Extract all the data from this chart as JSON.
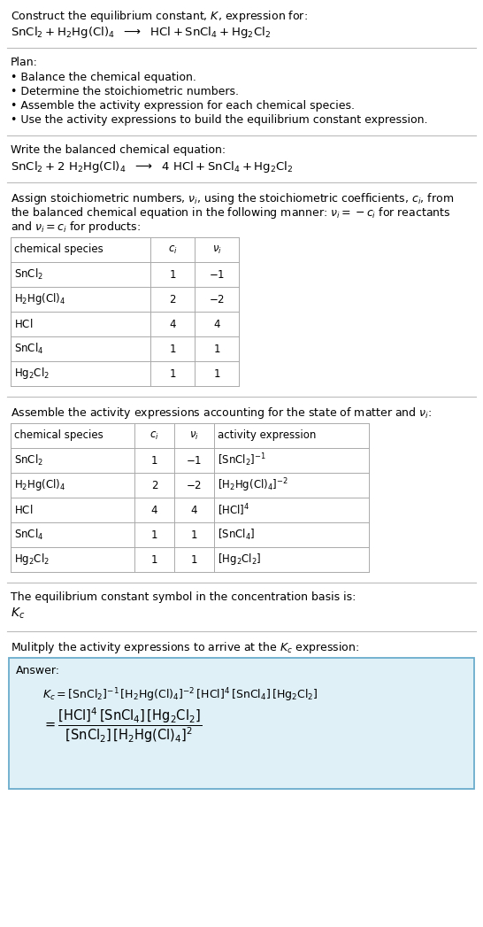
{
  "bg_color": "#ffffff",
  "text_color": "#000000",
  "divider_color": "#bbbbbb",
  "table_border_color": "#aaaaaa",
  "answer_box_color": "#dff0f7",
  "answer_box_border": "#6aabcc",
  "font_size": 9.0,
  "title_line1": "Construct the equilibrium constant, $K$, expression for:",
  "plan_header": "Plan:",
  "plan_items": [
    "• Balance the chemical equation.",
    "• Determine the stoichiometric numbers.",
    "• Assemble the activity expression for each chemical species.",
    "• Use the activity expressions to build the equilibrium constant expression."
  ],
  "balanced_header": "Write the balanced chemical equation:",
  "stoich_header_parts": [
    "Assign stoichiometric numbers, ",
    "nu_i",
    ", using the stoichiometric coefficients, ",
    "c_i",
    ", from"
  ],
  "table1_cols": [
    "chemical species",
    "c_i",
    "nu_i"
  ],
  "table1_rows": [
    [
      "SnCl2",
      "1",
      "-1"
    ],
    [
      "H2HgCl4",
      "2",
      "-2"
    ],
    [
      "HCl",
      "4",
      "4"
    ],
    [
      "SnCl4",
      "1",
      "1"
    ],
    [
      "Hg2Cl2",
      "1",
      "1"
    ]
  ],
  "table2_cols": [
    "chemical species",
    "c_i",
    "nu_i",
    "activity expression"
  ],
  "table2_rows": [
    [
      "SnCl2",
      "1",
      "-1",
      "SnCl2_m1"
    ],
    [
      "H2HgCl4",
      "2",
      "-2",
      "H2HgCl4_m2"
    ],
    [
      "HCl",
      "4",
      "4",
      "HCl_4"
    ],
    [
      "SnCl4",
      "1",
      "1",
      "SnCl4_1"
    ],
    [
      "Hg2Cl2",
      "1",
      "1",
      "Hg2Cl2_1"
    ]
  ],
  "kc_header": "The equilibrium constant symbol in the concentration basis is:",
  "multiply_header": "Mulitply the activity expressions to arrive at the $K_c$ expression:",
  "answer_label": "Answer:"
}
